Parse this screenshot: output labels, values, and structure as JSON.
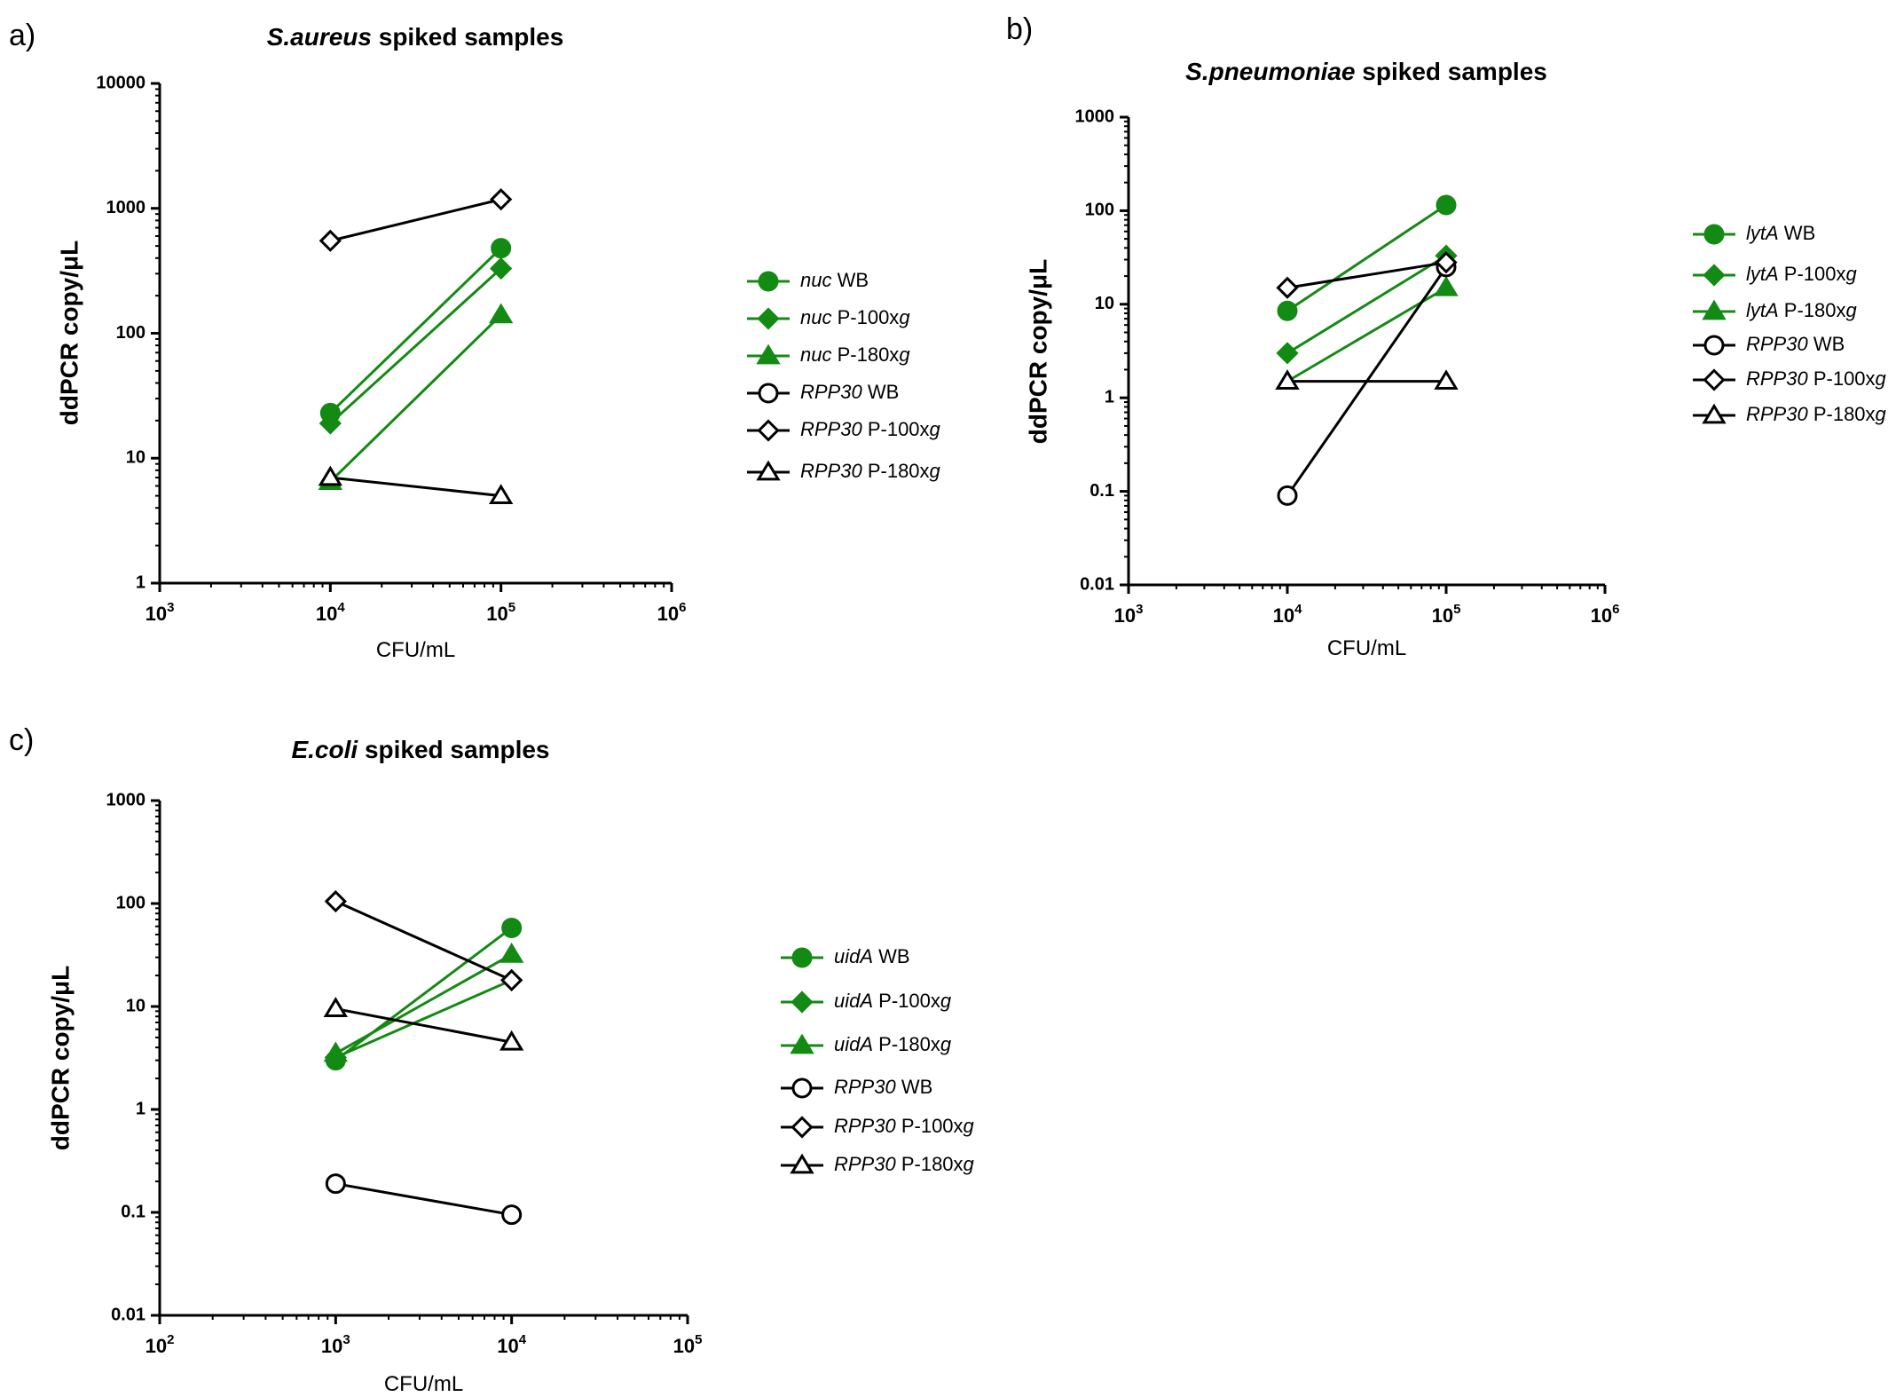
{
  "colors": {
    "green": "#138a13",
    "black": "#000000"
  },
  "chart_data": [
    {
      "type": "line",
      "panel": "a)",
      "title": "S.aureus spiked samples",
      "title_italic": "S.aureus",
      "title_rest": " spiked samples",
      "xlabel": "CFU/mL",
      "ylabel": "ddPCR copy/μL",
      "xscale": "log",
      "yscale": "log",
      "xlim": [
        1000,
        1000000
      ],
      "ylim": [
        1,
        10000
      ],
      "x_ticks": [
        {
          "base": "10",
          "exp": "3"
        },
        {
          "base": "10",
          "exp": "4"
        },
        {
          "base": "10",
          "exp": "5"
        },
        {
          "base": "10",
          "exp": "6"
        }
      ],
      "y_ticks": [
        "1",
        "10",
        "100",
        "1000",
        "10000"
      ],
      "series": [
        {
          "name": "nuc WB",
          "gene": "nuc",
          "suffix": " WB",
          "suffix_italic": "",
          "color": "#138a13",
          "marker": "circle",
          "filled": true,
          "x": [
            10000,
            100000
          ],
          "y": [
            23,
            480
          ]
        },
        {
          "name": "nuc P-100xg",
          "gene": "nuc",
          "suffix": " P-100x",
          "suffix_italic": "g",
          "color": "#138a13",
          "marker": "diamond",
          "filled": true,
          "x": [
            10000,
            100000
          ],
          "y": [
            19,
            330
          ]
        },
        {
          "name": "nuc P-180xg",
          "gene": "nuc",
          "suffix": " P-180x",
          "suffix_italic": "g",
          "color": "#138a13",
          "marker": "triangle",
          "filled": true,
          "x": [
            10000,
            100000
          ],
          "y": [
            6.5,
            140
          ]
        },
        {
          "name": "RPP30 WB",
          "gene": "RPP30",
          "suffix": " WB",
          "suffix_italic": "",
          "color": "#000000",
          "marker": "circle",
          "filled": false,
          "x": [],
          "y": []
        },
        {
          "name": "RPP30 P-100xg",
          "gene": "RPP30",
          "suffix": " P-100x",
          "suffix_italic": "g",
          "color": "#000000",
          "marker": "diamond",
          "filled": false,
          "x": [
            10000,
            100000
          ],
          "y": [
            550,
            1180
          ]
        },
        {
          "name": "RPP30 P-180xg",
          "gene": "RPP30",
          "suffix": " P-180x",
          "suffix_italic": "g",
          "color": "#000000",
          "marker": "triangle",
          "filled": false,
          "x": [
            10000,
            100000
          ],
          "y": [
            7,
            5
          ]
        }
      ]
    },
    {
      "type": "line",
      "panel": "b)",
      "title": "S.pneumoniae spiked samples",
      "title_italic": "S.pneumoniae",
      "title_rest": " spiked samples",
      "xlabel": "CFU/mL",
      "ylabel": "ddPCR copy/μL",
      "xscale": "log",
      "yscale": "log",
      "xlim": [
        1000,
        1000000
      ],
      "ylim": [
        0.01,
        1000
      ],
      "x_ticks": [
        {
          "base": "10",
          "exp": "3"
        },
        {
          "base": "10",
          "exp": "4"
        },
        {
          "base": "10",
          "exp": "5"
        },
        {
          "base": "10",
          "exp": "6"
        }
      ],
      "y_ticks": [
        "0.01",
        "0.1",
        "1",
        "10",
        "100",
        "1000"
      ],
      "series": [
        {
          "name": "lytA WB",
          "gene": "lytA",
          "suffix": " WB",
          "suffix_italic": "",
          "color": "#138a13",
          "marker": "circle",
          "filled": true,
          "x": [
            10000,
            100000
          ],
          "y": [
            8.5,
            115
          ]
        },
        {
          "name": "lytA P-100xg",
          "gene": "lytA",
          "suffix": " P-100x",
          "suffix_italic": "g",
          "color": "#138a13",
          "marker": "diamond",
          "filled": true,
          "x": [
            10000,
            100000
          ],
          "y": [
            3,
            33
          ]
        },
        {
          "name": "lytA P-180xg",
          "gene": "lytA",
          "suffix": " P-180x",
          "suffix_italic": "g",
          "color": "#138a13",
          "marker": "triangle",
          "filled": true,
          "x": [
            10000,
            100000
          ],
          "y": [
            1.5,
            15
          ]
        },
        {
          "name": "RPP30 WB",
          "gene": "RPP30",
          "suffix": " WB",
          "suffix_italic": "",
          "color": "#000000",
          "marker": "circle",
          "filled": false,
          "x": [
            10000,
            100000
          ],
          "y": [
            0.09,
            25
          ]
        },
        {
          "name": "RPP30 P-100xg",
          "gene": "RPP30",
          "suffix": " P-100x",
          "suffix_italic": "g",
          "color": "#000000",
          "marker": "diamond",
          "filled": false,
          "x": [
            10000,
            100000
          ],
          "y": [
            15,
            28
          ]
        },
        {
          "name": "RPP30 P-180xg",
          "gene": "RPP30",
          "suffix": " P-180x",
          "suffix_italic": "g",
          "color": "#000000",
          "marker": "triangle",
          "filled": false,
          "x": [
            10000,
            100000
          ],
          "y": [
            1.5,
            1.5
          ]
        }
      ]
    },
    {
      "type": "line",
      "panel": "c)",
      "title": "E.coli spiked samples",
      "title_italic": "E.coli",
      "title_rest": " spiked samples",
      "xlabel": "CFU/mL",
      "ylabel": "ddPCR copy/μL",
      "xscale": "log",
      "yscale": "log",
      "xlim": [
        100,
        100000
      ],
      "ylim": [
        0.01,
        1000
      ],
      "x_ticks": [
        {
          "base": "10",
          "exp": "2"
        },
        {
          "base": "10",
          "exp": "3"
        },
        {
          "base": "10",
          "exp": "4"
        },
        {
          "base": "10",
          "exp": "5"
        }
      ],
      "y_ticks": [
        "0.01",
        "0.1",
        "1",
        "10",
        "100",
        "1000"
      ],
      "series": [
        {
          "name": "uidA WB",
          "gene": "uidA",
          "suffix": " WB",
          "suffix_italic": "",
          "color": "#138a13",
          "marker": "circle",
          "filled": true,
          "x": [
            1000,
            10000
          ],
          "y": [
            3,
            58
          ]
        },
        {
          "name": "uidA P-100xg",
          "gene": "uidA",
          "suffix": " P-100x",
          "suffix_italic": "g",
          "color": "#138a13",
          "marker": "diamond",
          "filled": true,
          "x": [
            1000,
            10000
          ],
          "y": [
            3.2,
            18
          ]
        },
        {
          "name": "uidA P-180xg",
          "gene": "uidA",
          "suffix": " P-180x",
          "suffix_italic": "g",
          "color": "#138a13",
          "marker": "triangle",
          "filled": true,
          "x": [
            1000,
            10000
          ],
          "y": [
            3.5,
            32
          ]
        },
        {
          "name": "RPP30 WB",
          "gene": "RPP30",
          "suffix": " WB",
          "suffix_italic": "",
          "color": "#000000",
          "marker": "circle",
          "filled": false,
          "x": [
            1000,
            10000
          ],
          "y": [
            0.19,
            0.095
          ]
        },
        {
          "name": "RPP30 P-100xg",
          "gene": "RPP30",
          "suffix": " P-100x",
          "suffix_italic": "g",
          "color": "#000000",
          "marker": "diamond",
          "filled": false,
          "x": [
            1000,
            10000
          ],
          "y": [
            105,
            18
          ]
        },
        {
          "name": "RPP30 P-180xg",
          "gene": "RPP30",
          "suffix": " P-180x",
          "suffix_italic": "g",
          "color": "#000000",
          "marker": "triangle",
          "filled": false,
          "x": [
            1000,
            10000
          ],
          "y": [
            9.5,
            4.5
          ]
        }
      ]
    }
  ]
}
